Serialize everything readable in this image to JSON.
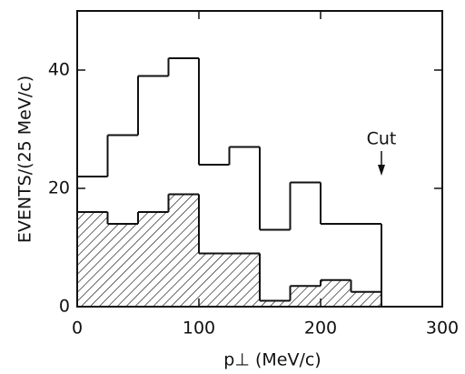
{
  "chart_data": {
    "type": "histogram",
    "bins": [
      0,
      25,
      50,
      75,
      100,
      125,
      150,
      175,
      200,
      225,
      250
    ],
    "series": [
      {
        "color": "#111111",
        "values": [
          22,
          29,
          39,
          42,
          24,
          27,
          13,
          21,
          14,
          14
        ]
      },
      {
        "color": "#111111",
        "hatch": true,
        "values": [
          16,
          14,
          16,
          19,
          9,
          9,
          1,
          3.5,
          4.5,
          2.5
        ]
      }
    ],
    "xlabel": "p⊥  (MeV/c)",
    "ylabel": "EVENTS/(25 MeV/c)",
    "xlim": [
      0,
      300
    ],
    "xticks": [
      0,
      100,
      200,
      300
    ],
    "ylim": [
      0,
      50
    ],
    "yticks": [
      0,
      20,
      40
    ],
    "annotations": [
      {
        "text": "Cut",
        "x": 250
      }
    ]
  }
}
